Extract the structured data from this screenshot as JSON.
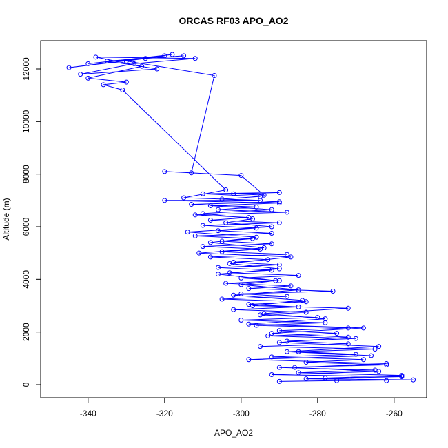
{
  "chart_data": {
    "type": "line",
    "title": "ORCAS RF03 APO_AO2",
    "xlabel": "APO_AO2",
    "ylabel": "Altitude (m)",
    "color": "#0000ff",
    "xlim": [
      -352.4,
      -251.5
    ],
    "ylim": [
      -498,
      13074
    ],
    "xticks": [
      -340,
      -320,
      -300,
      -280,
      -260
    ],
    "yticks": [
      0,
      2000,
      4000,
      6000,
      8000,
      10000,
      12000
    ],
    "x": [
      -262,
      -278,
      -258,
      -285,
      -265,
      -290,
      -262,
      -283,
      -268,
      -292,
      -270,
      -285,
      -265,
      -295,
      -272,
      -288,
      -270,
      -293,
      -275,
      -290,
      -272,
      -296,
      -278,
      -300,
      -280,
      -295,
      -283,
      -302,
      -285,
      -298,
      -283,
      -305,
      -288,
      -300,
      -276,
      -298,
      -287,
      -304,
      -290,
      -300,
      -285,
      -303,
      -292,
      -306,
      -290,
      -302,
      -293,
      -308,
      -288,
      -305,
      -295,
      -310,
      -292,
      -305,
      -297,
      -312,
      -292,
      -306,
      -296,
      -310,
      -290,
      -308,
      -298,
      -312,
      -288,
      -306,
      -296,
      -313,
      -290,
      -305,
      -295,
      -310,
      -290,
      -302,
      -294,
      -300,
      -320,
      -313,
      -307,
      -330,
      -320,
      -340,
      -318,
      -345,
      -325,
      -315,
      -335,
      -322,
      -342,
      -328,
      -312,
      -338,
      -326,
      -340,
      -330,
      -336,
      -331,
      -304,
      -315,
      -295,
      -320,
      -290,
      -308,
      -292,
      -310,
      -297,
      -304,
      -292,
      -314,
      -296,
      -308,
      -294,
      -311,
      -287,
      -303,
      -290,
      -306,
      -291,
      -300,
      -285,
      -302,
      -284,
      -297,
      -272,
      -294,
      -278,
      -298,
      -268,
      -292,
      -272,
      -290,
      -264,
      -288,
      -266,
      -298,
      -262,
      -286,
      -264,
      -292,
      -258,
      -283,
      -255,
      -275,
      -290
    ],
    "values": [
      150,
      250,
      350,
      450,
      550,
      650,
      750,
      850,
      950,
      1050,
      1150,
      1250,
      1350,
      1450,
      1550,
      1650,
      1750,
      1850,
      1950,
      2050,
      2150,
      2250,
      2350,
      2450,
      2550,
      2650,
      2750,
      2850,
      2950,
      3050,
      3150,
      3250,
      3350,
      3450,
      3550,
      3650,
      3750,
      3850,
      3950,
      4050,
      4150,
      4250,
      4350,
      4450,
      4550,
      4650,
      4750,
      4850,
      4950,
      5050,
      5150,
      5250,
      5350,
      5450,
      5550,
      5650,
      5750,
      5850,
      5950,
      6050,
      6150,
      6250,
      6350,
      6450,
      6550,
      6650,
      6750,
      6850,
      6950,
      7050,
      7150,
      7250,
      7300,
      7250,
      7200,
      7950,
      8100,
      8050,
      11750,
      12300,
      12500,
      12200,
      12550,
      12050,
      12400,
      12500,
      12300,
      12000,
      11800,
      12200,
      12400,
      12450,
      12100,
      11650,
      11500,
      11400,
      11200,
      7400,
      7100,
      7000,
      7000,
      6900,
      6800,
      6650,
      6500,
      6300,
      6150,
      6000,
      5800,
      5600,
      5400,
      5200,
      5000,
      4850,
      4600,
      4400,
      4200,
      3950,
      3800,
      3600,
      3400,
      3200,
      3000,
      2900,
      2700,
      2500,
      2300,
      2150,
      1950,
      1800,
      1600,
      1450,
      1250,
      1100,
      950,
      800,
      650,
      500,
      380,
      300,
      220,
      180,
      150,
      120
    ]
  }
}
